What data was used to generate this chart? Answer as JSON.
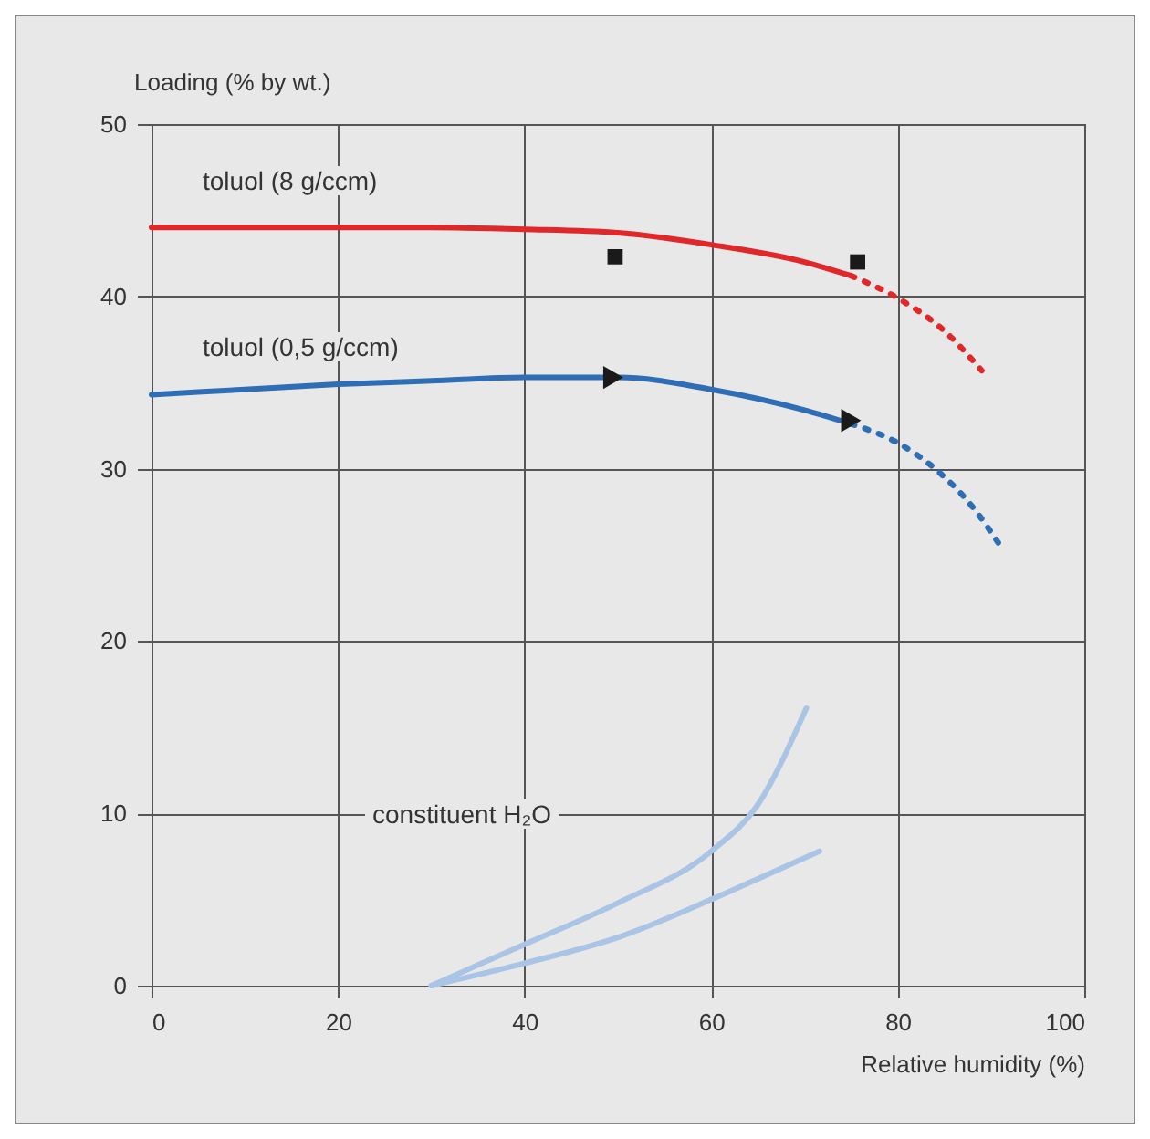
{
  "chart_data": {
    "type": "line",
    "xlabel": "Relative humidity (%)",
    "ylabel": "Loading (% by wt.)",
    "xlim": [
      0,
      100
    ],
    "xticks": [
      0,
      20,
      40,
      60,
      80,
      100
    ],
    "ylim": [
      0,
      50
    ],
    "yticks": [
      0,
      10,
      20,
      30,
      40,
      50
    ],
    "grid": true,
    "annotations": [
      "constituent H₂O"
    ],
    "series": [
      {
        "name": "toluol (8 g/ccm)",
        "color": "#e0282a",
        "line_style": "solid",
        "x": [
          0,
          10,
          20,
          30,
          40,
          50,
          60,
          70,
          75
        ],
        "values": [
          44,
          44,
          44,
          44,
          43.9,
          43.7,
          43,
          42,
          41.2
        ]
      },
      {
        "color": "#e0282a",
        "line_style": "dotted",
        "x": [
          75,
          80,
          85,
          89
        ],
        "values": [
          41.2,
          39.9,
          38,
          35.7
        ]
      },
      {
        "name": "toluol (0,5 g/ccm)",
        "color": "#2f6db5",
        "line_style": "solid",
        "x": [
          0,
          10,
          20,
          30,
          40,
          50,
          60,
          70,
          75
        ],
        "values": [
          34.3,
          34.6,
          34.9,
          35.1,
          35.3,
          35.3,
          34.6,
          33.4,
          32.6
        ]
      },
      {
        "color": "#2f6db5",
        "line_style": "dotted",
        "x": [
          75,
          80,
          84,
          88,
          91.4
        ],
        "values": [
          32.6,
          31.5,
          30,
          27.8,
          25.2
        ]
      },
      {
        "color": "#a9c4e4",
        "line_style": "solid",
        "x": [
          30,
          40,
          50,
          60,
          65,
          70.2
        ],
        "values": [
          0,
          2.4,
          4.8,
          7.8,
          10.5,
          16.1
        ]
      },
      {
        "color": "#a9c4e4",
        "line_style": "solid",
        "x": [
          30,
          40,
          50,
          60,
          65,
          71.6
        ],
        "values": [
          0,
          1.3,
          2.8,
          5,
          6.2,
          7.8
        ]
      },
      {
        "type": "scatter",
        "marker": "square",
        "color": "#1a1a1a",
        "x": [
          49.7,
          75.7
        ],
        "values": [
          42.3,
          42
        ]
      },
      {
        "type": "scatter",
        "marker": "triangle",
        "color": "#1a1a1a",
        "x": [
          49.5,
          75
        ],
        "values": [
          35.3,
          32.8
        ]
      }
    ]
  }
}
